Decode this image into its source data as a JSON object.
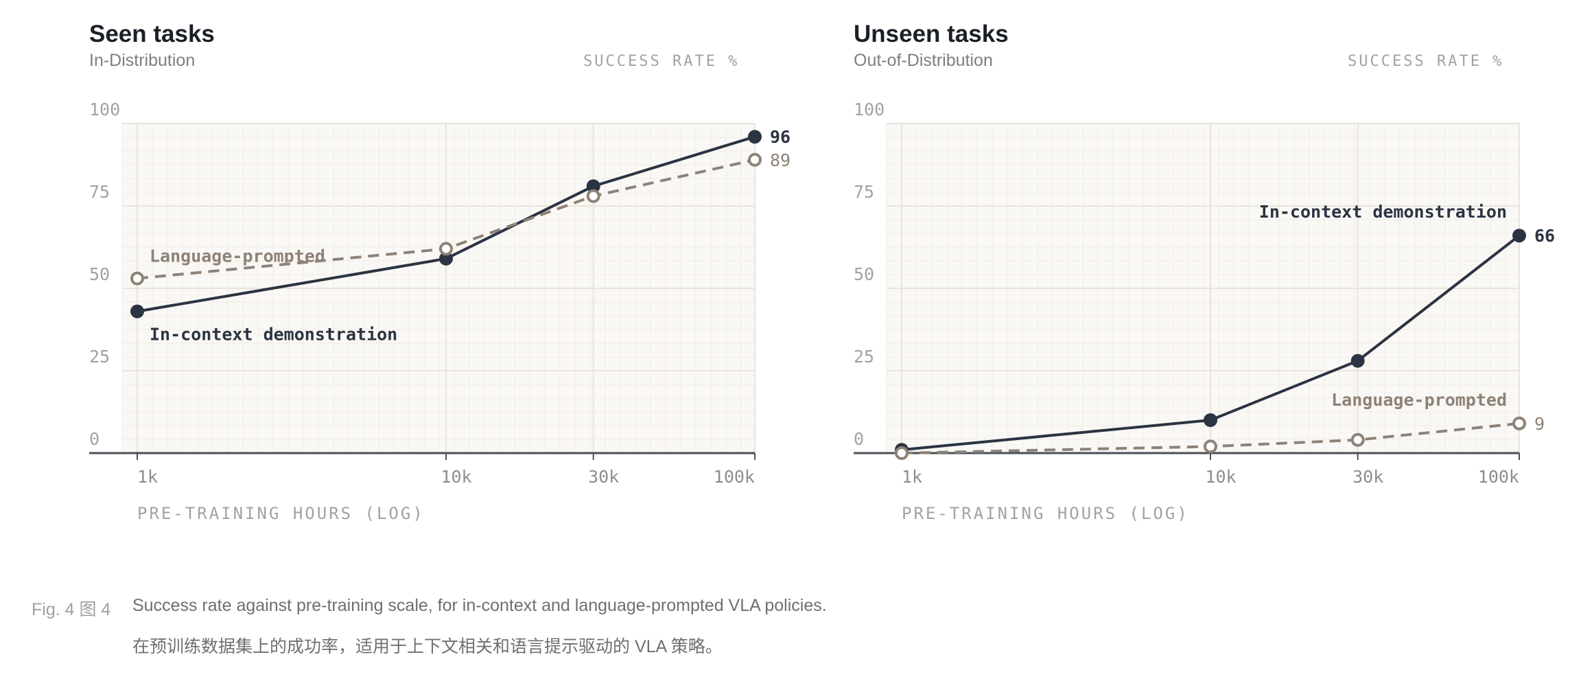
{
  "panels": [
    {
      "title": "Seen tasks",
      "subtitle": "In-Distribution",
      "unit_label": "SUCCESS RATE %",
      "xlabel": "PRE-TRAINING HOURS (LOG)"
    },
    {
      "title": "Unseen tasks",
      "subtitle": "Out-of-Distribution",
      "unit_label": "SUCCESS RATE %",
      "xlabel": "PRE-TRAINING HOURS (LOG)"
    }
  ],
  "caption": {
    "number": "Fig. 4  图 4",
    "text_en": "Success rate against pre-training scale, for in-context and language-prompted VLA policies.",
    "text_zh": "在预训练数据集上的成功率，适用于上下文相关和语言提示驱动的 VLA 策略。"
  },
  "colors": {
    "in_context": "#2b3442",
    "language": "#8e8277",
    "axis": "#4a4f58",
    "tick_text": "#a4a2a0",
    "plot_bg": "#faf8f5",
    "grid": "#e8e4dd"
  },
  "chart_data": [
    {
      "type": "line",
      "title": "Seen tasks",
      "subtitle": "In-Distribution",
      "xlabel": "PRE-TRAINING HOURS (LOG)",
      "ylabel": "SUCCESS RATE %",
      "x_scale": "log",
      "x": [
        1000,
        10000,
        30000,
        100000
      ],
      "x_tick_labels": [
        "1k",
        "10k",
        "30k",
        "100k"
      ],
      "ylim": [
        0,
        100
      ],
      "y_ticks": [
        0,
        25,
        50,
        75,
        100
      ],
      "grid": true,
      "series": [
        {
          "name": "In-context demonstration",
          "values": [
            43,
            59,
            81,
            96
          ],
          "style": "solid",
          "end_label": "96",
          "label_placement": "below-start"
        },
        {
          "name": "Language-prompted",
          "values": [
            53,
            62,
            78,
            89
          ],
          "style": "dashed",
          "end_label": "89",
          "label_placement": "above-start"
        }
      ]
    },
    {
      "type": "line",
      "title": "Unseen tasks",
      "subtitle": "Out-of-Distribution",
      "xlabel": "PRE-TRAINING HOURS (LOG)",
      "ylabel": "SUCCESS RATE %",
      "x_scale": "log",
      "x": [
        1000,
        10000,
        30000,
        100000
      ],
      "x_tick_labels": [
        "1k",
        "10k",
        "30k",
        "100k"
      ],
      "ylim": [
        0,
        100
      ],
      "y_ticks": [
        0,
        25,
        50,
        75,
        100
      ],
      "grid": true,
      "series": [
        {
          "name": "In-context demonstration",
          "values": [
            1,
            10,
            28,
            66
          ],
          "style": "solid",
          "end_label": "66",
          "label_placement": "above-end"
        },
        {
          "name": "Language-prompted",
          "values": [
            0,
            2,
            4,
            9
          ],
          "style": "dashed",
          "end_label": "9",
          "label_placement": "above-end"
        }
      ]
    }
  ]
}
